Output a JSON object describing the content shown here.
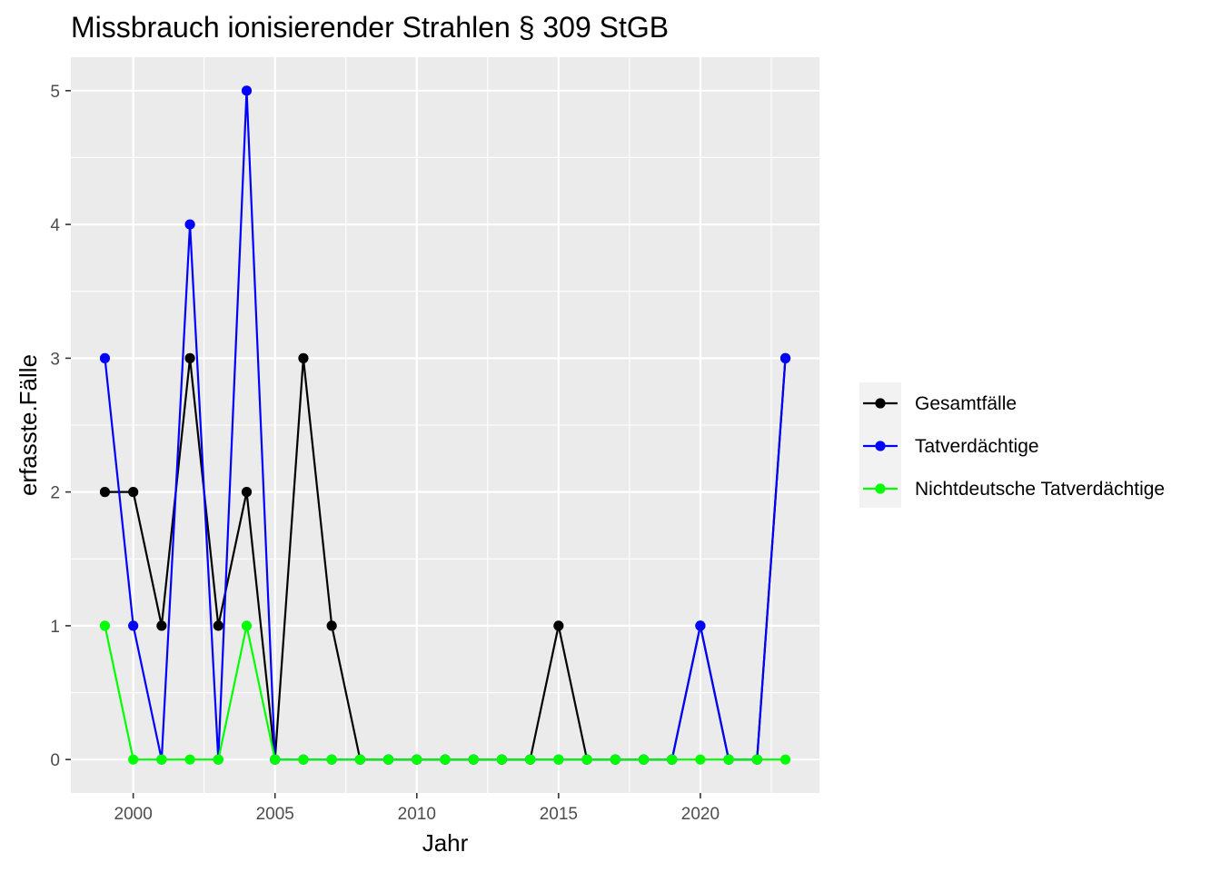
{
  "chart_data": {
    "type": "line",
    "title": "Missbrauch ionisierender Strahlen § 309 StGB",
    "xlabel": "Jahr",
    "ylabel": "erfasste.Fälle",
    "x": [
      1999,
      2000,
      2001,
      2002,
      2003,
      2004,
      2005,
      2006,
      2007,
      2008,
      2009,
      2010,
      2011,
      2012,
      2013,
      2014,
      2015,
      2016,
      2017,
      2018,
      2019,
      2020,
      2021,
      2022,
      2023
    ],
    "xlim": [
      1997.8,
      2024.2
    ],
    "ylim": [
      -0.25,
      5.25
    ],
    "x_ticks": [
      2000,
      2005,
      2010,
      2015,
      2020
    ],
    "x_tick_labels": [
      "2000",
      "2005",
      "2010",
      "2015",
      "2020"
    ],
    "y_ticks": [
      0,
      1,
      2,
      3,
      4,
      5
    ],
    "y_tick_labels": [
      "0",
      "1",
      "2",
      "3",
      "4",
      "5"
    ],
    "grid": true,
    "legend_position": "right",
    "series": [
      {
        "name": "Gesamtfälle",
        "color": "#000000",
        "values": [
          2,
          2,
          1,
          3,
          1,
          2,
          0,
          3,
          1,
          0,
          0,
          0,
          0,
          0,
          0,
          0,
          1,
          0,
          0,
          0,
          0,
          1,
          0,
          0,
          3
        ]
      },
      {
        "name": "Tatverdächtige",
        "color": "#0000ff",
        "values": [
          3,
          1,
          0,
          4,
          0,
          5,
          0,
          0,
          0,
          0,
          0,
          0,
          0,
          0,
          0,
          0,
          0,
          0,
          0,
          0,
          0,
          1,
          0,
          0,
          3
        ]
      },
      {
        "name": "Nichtdeutsche Tatverdächtige",
        "color": "#00ff00",
        "values": [
          1,
          0,
          0,
          0,
          0,
          1,
          0,
          0,
          0,
          0,
          0,
          0,
          0,
          0,
          0,
          0,
          0,
          0,
          0,
          0,
          0,
          0,
          0,
          0,
          0
        ]
      }
    ]
  }
}
